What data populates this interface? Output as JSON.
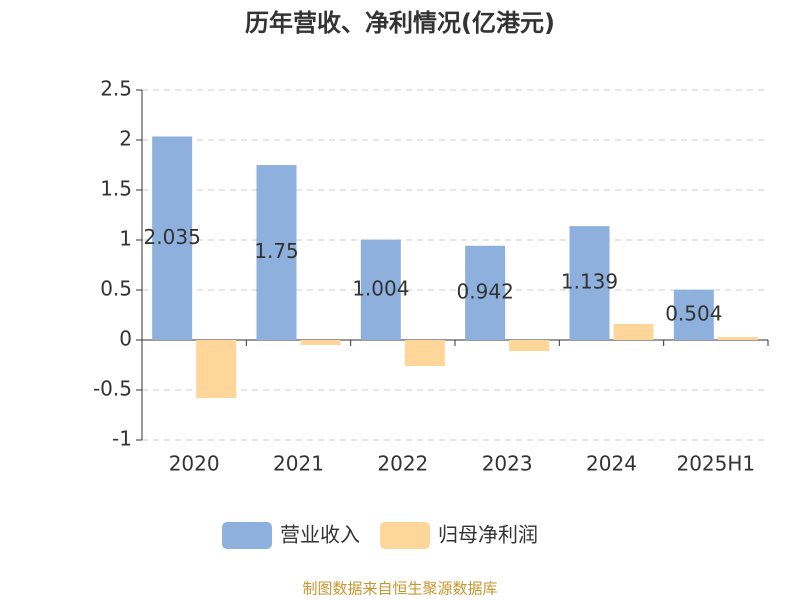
{
  "chart_data": {
    "type": "bar",
    "title": "历年营收、净利情况(亿港元)",
    "categories": [
      "2020",
      "2021",
      "2022",
      "2023",
      "2024",
      "2025H1"
    ],
    "series": [
      {
        "name": "营业收入",
        "color": "#8eb0dc",
        "values": [
          2.035,
          1.75,
          1.004,
          0.942,
          1.139,
          0.504
        ],
        "show_labels": true
      },
      {
        "name": "归母净利润",
        "color": "#ffd699",
        "values": [
          -0.58,
          -0.05,
          -0.26,
          -0.11,
          0.16,
          0.03
        ],
        "show_labels": false
      }
    ],
    "ylim": [
      -1,
      2.5
    ],
    "yticks": [
      -1,
      -0.5,
      0,
      0.5,
      1,
      1.5,
      2,
      2.5
    ],
    "grid": true,
    "legend": "bottom",
    "source": "制图数据来自恒生聚源数据库"
  }
}
